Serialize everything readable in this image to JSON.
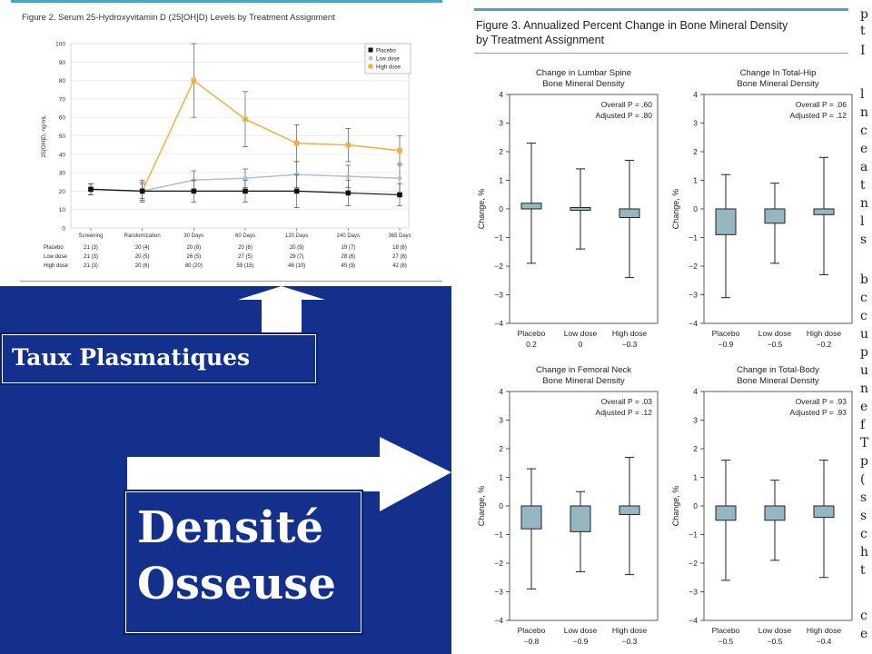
{
  "slide": {
    "label_plasma": "Taux Plasmatiques",
    "label_density_line1": "Densité",
    "label_density_line2": "Osseuse",
    "colors": {
      "background": "#12308c",
      "box_border": "#ffffff",
      "arrow": "#ffffff"
    }
  },
  "figure2": {
    "title": "Figure 2. Serum 25-Hydroxyvitamin D (25[OH]D) Levels by Treatment Assignment",
    "table_rows": [
      {
        "label": "Placebo",
        "cells": [
          "21 (3)",
          "20 (4)",
          "20 (6)",
          "20 (6)",
          "20 (9)",
          "19 (7)",
          "18 (6)"
        ]
      },
      {
        "label": "Low dose",
        "cells": [
          "21 (3)",
          "20 (5)",
          "26 (5)",
          "27 (5)",
          "29 (7)",
          "28 (6)",
          "27 (8)"
        ]
      },
      {
        "label": "High dose",
        "cells": [
          "21 (3)",
          "20 (6)",
          "80 (20)",
          "59 (15)",
          "46 (10)",
          "45 (9)",
          "42 (8)"
        ]
      }
    ]
  },
  "figure3": {
    "title_line1": "Figure 3. Annualized Percent Change in Bone Mineral Density",
    "title_line2": "by Treatment Assignment"
  },
  "right_text_glyphs": [
    "p",
    "t",
    "I",
    "l",
    "n",
    "c",
    "e",
    "a",
    "t",
    "n",
    "l",
    "s",
    "b",
    "c",
    "c",
    "u",
    "p",
    "u",
    "n",
    "e",
    "f",
    "T",
    "p",
    "(",
    "s",
    "s",
    "c",
    "h",
    "t",
    "c",
    "e"
  ],
  "chart_data": [
    {
      "type": "line",
      "title": "Figure 2. Serum 25-Hydroxyvitamin D (25[OH]D) Levels by Treatment Assignment",
      "xlabel": "",
      "ylabel": "25[OH]D, ng/mL",
      "ylim": [
        0,
        100
      ],
      "yticks": [
        0,
        10,
        20,
        30,
        40,
        50,
        60,
        70,
        80,
        90,
        100
      ],
      "categories": [
        "Screening",
        "Randomization",
        "30 Days",
        "60 Days",
        "120 Days",
        "240 Days",
        "365 Days"
      ],
      "legend_position": "top-right",
      "series": [
        {
          "name": "Placebo",
          "color": "#111111",
          "marker": "square",
          "values": [
            21,
            20,
            20,
            20,
            20,
            19,
            18
          ],
          "sd": [
            3,
            4,
            6,
            6,
            9,
            7,
            6
          ]
        },
        {
          "name": "Low dose",
          "color": "#a9c4d6",
          "marker": "circle",
          "values": [
            21,
            20,
            26,
            27,
            29,
            28,
            27
          ],
          "sd": [
            3,
            5,
            5,
            5,
            7,
            6,
            8
          ]
        },
        {
          "name": "High dose",
          "color": "#f0b040",
          "marker": "square",
          "values": [
            21,
            20,
            80,
            59,
            46,
            45,
            42
          ],
          "sd": [
            3,
            6,
            20,
            15,
            10,
            9,
            8
          ]
        }
      ]
    },
    {
      "type": "box",
      "title": "Change in Lumbar Spine Bone Mineral Density",
      "title_line1": "Change in Lumbar Spine",
      "title_line2": "Bone Mineral Density",
      "ylabel": "Change, %",
      "ylim": [
        -4,
        4
      ],
      "yticks": [
        -4,
        -3,
        -2,
        -1,
        0,
        1,
        2,
        3,
        4
      ],
      "stat_line1": "Overall P = .60",
      "stat_line2": "Adjusted P = .80",
      "groups": [
        {
          "label": "Placebo",
          "median": "0.2",
          "q1": 0.0,
          "q3": 0.2,
          "min": -1.9,
          "max": 2.3
        },
        {
          "label": "Low dose",
          "median": "0",
          "q1": -0.05,
          "q3": 0.05,
          "min": -1.4,
          "max": 1.4
        },
        {
          "label": "High dose",
          "median": "−0.3",
          "q1": -0.3,
          "q3": 0.0,
          "min": -2.4,
          "max": 1.7
        }
      ]
    },
    {
      "type": "box",
      "title": "Change In Total-Hip Bone Mineral Density",
      "title_line1": "Change In Total-Hip",
      "title_line2": "Bone Mineral Density",
      "ylabel": "Change, %",
      "ylim": [
        -4,
        4
      ],
      "yticks": [
        -4,
        -3,
        -2,
        -1,
        0,
        1,
        2,
        3,
        4
      ],
      "stat_line1": "Overall P = .06",
      "stat_line2": "Adjusted P = .12",
      "groups": [
        {
          "label": "Placebo",
          "median": "−0.9",
          "q1": -0.9,
          "q3": 0.0,
          "min": -3.1,
          "max": 1.2
        },
        {
          "label": "Low dose",
          "median": "−0.5",
          "q1": -0.5,
          "q3": 0.0,
          "min": -1.9,
          "max": 0.9
        },
        {
          "label": "High dose",
          "median": "−0.2",
          "q1": -0.2,
          "q3": 0.0,
          "min": -2.3,
          "max": 1.8
        }
      ]
    },
    {
      "type": "box",
      "title": "Change in Femoral Neck Bone Mineral Density",
      "title_line1": "Change in Femoral Neck",
      "title_line2": "Bone Mineral Density",
      "ylabel": "Change, %",
      "ylim": [
        -4,
        4
      ],
      "yticks": [
        -4,
        -3,
        -2,
        -1,
        0,
        1,
        2,
        3,
        4
      ],
      "stat_line1": "Overall P = .03",
      "stat_line2": "Adjusted P = .12",
      "groups": [
        {
          "label": "Placebo",
          "median": "−0.8",
          "q1": -0.8,
          "q3": 0.0,
          "min": -2.9,
          "max": 1.3
        },
        {
          "label": "Low dose",
          "median": "−0.9",
          "q1": -0.9,
          "q3": 0.0,
          "min": -2.3,
          "max": 0.5
        },
        {
          "label": "High dose",
          "median": "−0.3",
          "q1": -0.3,
          "q3": 0.0,
          "min": -2.4,
          "max": 1.7
        }
      ]
    },
    {
      "type": "box",
      "title": "Change in Total-Body Bone Mineral Density",
      "title_line1": "Change in Total-Body",
      "title_line2": "Bone Mineral Density",
      "ylabel": "Change, %",
      "ylim": [
        -4,
        4
      ],
      "yticks": [
        -4,
        -3,
        -2,
        -1,
        0,
        1,
        2,
        3,
        4
      ],
      "stat_line1": "Overall P = .93",
      "stat_line2": "Adjusted P = .93",
      "groups": [
        {
          "label": "Placebo",
          "median": "−0.5",
          "q1": -0.5,
          "q3": 0.0,
          "min": -2.6,
          "max": 1.6
        },
        {
          "label": "Low dose",
          "median": "−0.5",
          "q1": -0.5,
          "q3": 0.0,
          "min": -1.9,
          "max": 0.9
        },
        {
          "label": "High dose",
          "median": "−0.4",
          "q1": -0.4,
          "q3": 0.0,
          "min": -2.5,
          "max": 1.6
        }
      ]
    }
  ]
}
